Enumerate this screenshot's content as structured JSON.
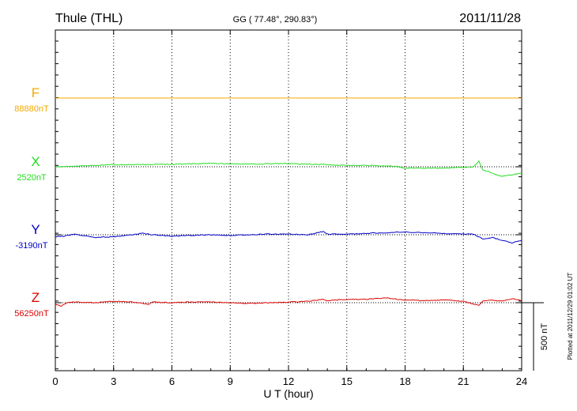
{
  "header": {
    "station": "Thule (THL)",
    "coords": "GG ( 77.48°, 290.83°)",
    "date": "2011/11/28"
  },
  "footer": {
    "plotted": "Plotted at 2011/12/29 01:02 UT"
  },
  "chart_data": {
    "type": "line",
    "title": "Thule (THL)",
    "xlabel": "U T (hour)",
    "ylabel": "",
    "xlim": [
      0,
      24
    ],
    "x_ticks": [
      "0",
      "3",
      "6",
      "9",
      "12",
      "15",
      "18",
      "21",
      "24"
    ],
    "grid": true,
    "scale_bar": {
      "label": "500 nT",
      "value_nT": 500
    },
    "series": [
      {
        "name": "F",
        "baseline_label": "88880nT",
        "baseline_nT": 88880,
        "color": "#f5a800",
        "x": [
          0,
          24
        ],
        "deviation_nT": [
          0,
          0
        ]
      },
      {
        "name": "X",
        "baseline_label": "2520nT",
        "baseline_nT": 2520,
        "color": "#22dd22",
        "x": [
          0,
          1,
          2,
          3,
          4,
          5,
          6,
          7,
          8,
          9,
          10,
          11,
          12,
          12.5,
          13,
          14,
          15,
          16,
          17,
          17.5,
          18,
          19,
          20,
          21,
          21.5,
          21.8,
          22,
          22.3,
          22.5,
          23,
          23.5,
          24
        ],
        "deviation_nT": [
          0,
          5,
          10,
          15,
          15,
          18,
          18,
          22,
          25,
          22,
          20,
          22,
          25,
          20,
          20,
          15,
          10,
          10,
          5,
          5,
          -10,
          -10,
          -10,
          -5,
          0,
          40,
          -25,
          -35,
          -50,
          -70,
          -60,
          -45
        ]
      },
      {
        "name": "Y",
        "baseline_label": "-3190nT",
        "baseline_nT": -3190,
        "color": "#0000cc",
        "x": [
          0,
          0.5,
          1,
          2,
          3,
          4,
          4.5,
          5,
          6,
          7,
          8,
          9,
          10,
          11,
          12,
          13,
          13.8,
          14,
          15,
          16,
          17,
          18,
          19,
          20,
          21,
          21.5,
          22,
          22.5,
          23,
          23.5,
          24
        ],
        "deviation_nT": [
          -15,
          -10,
          5,
          -20,
          -15,
          0,
          10,
          0,
          -10,
          -5,
          0,
          -5,
          0,
          5,
          5,
          0,
          25,
          5,
          5,
          10,
          15,
          20,
          15,
          10,
          5,
          5,
          -30,
          -20,
          -40,
          -60,
          -40
        ]
      },
      {
        "name": "Z",
        "baseline_label": "56250nT",
        "baseline_nT": 56250,
        "color": "#dd0000",
        "x": [
          0,
          0.3,
          0.6,
          1,
          2,
          3,
          4,
          4.8,
          5,
          6,
          7,
          8,
          9,
          10,
          11,
          12,
          13,
          13.8,
          14,
          15,
          16,
          17,
          18,
          19,
          20,
          21,
          21.8,
          22,
          22.5,
          23,
          23.5,
          24
        ],
        "deviation_nT": [
          -10,
          -25,
          0,
          5,
          0,
          10,
          5,
          -10,
          5,
          0,
          5,
          5,
          0,
          -5,
          0,
          5,
          10,
          25,
          15,
          25,
          25,
          35,
          20,
          15,
          20,
          10,
          -20,
          10,
          20,
          10,
          30,
          15
        ]
      }
    ]
  }
}
